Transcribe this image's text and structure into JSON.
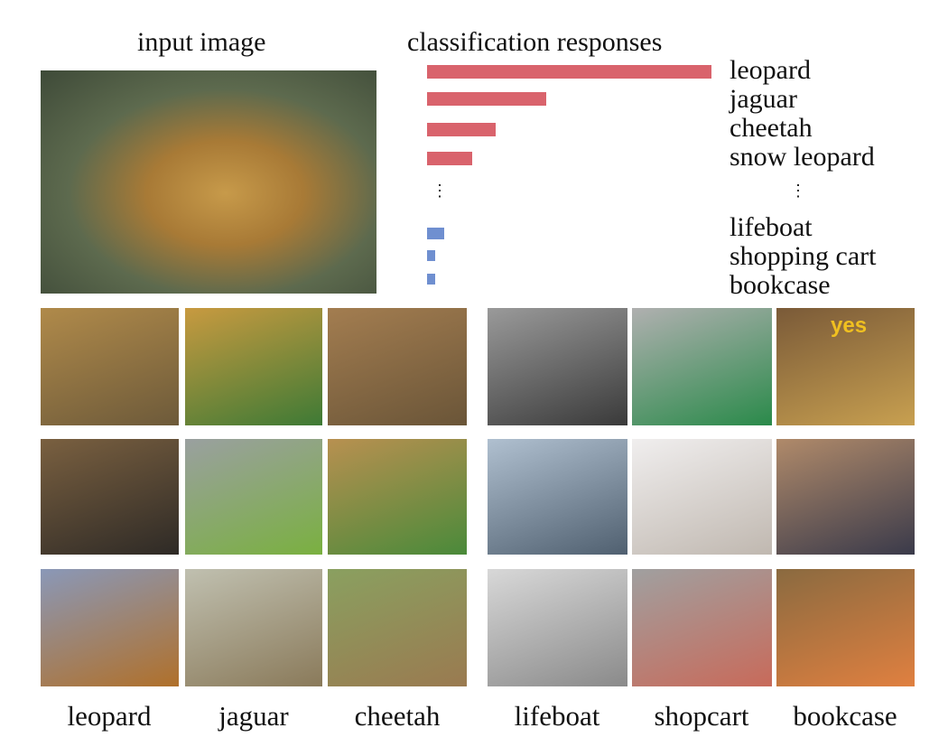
{
  "header": {
    "input_title": "input image",
    "responses_title": "classification responses"
  },
  "chart_data": {
    "type": "bar",
    "orientation": "horizontal",
    "title": "classification responses",
    "categories": [
      "leopard",
      "jaguar",
      "cheetah",
      "snow leopard",
      "lifeboat",
      "shopping cart",
      "bookcase"
    ],
    "values": [
      1.0,
      0.42,
      0.24,
      0.16,
      0.06,
      0.03,
      0.03
    ],
    "value_scale": "relative (no axis printed)",
    "colors": [
      "#d9636c",
      "#d9636c",
      "#d9636c",
      "#d9636c",
      "#6f8fd0",
      "#6f8fd0",
      "#6f8fd0"
    ],
    "ellipsis": "⋮",
    "grid": false
  },
  "grid_labels": [
    "leopard",
    "jaguar",
    "cheetah",
    "lifeboat",
    "shopcart",
    "bookcase"
  ],
  "bookcase_sign": "yes"
}
